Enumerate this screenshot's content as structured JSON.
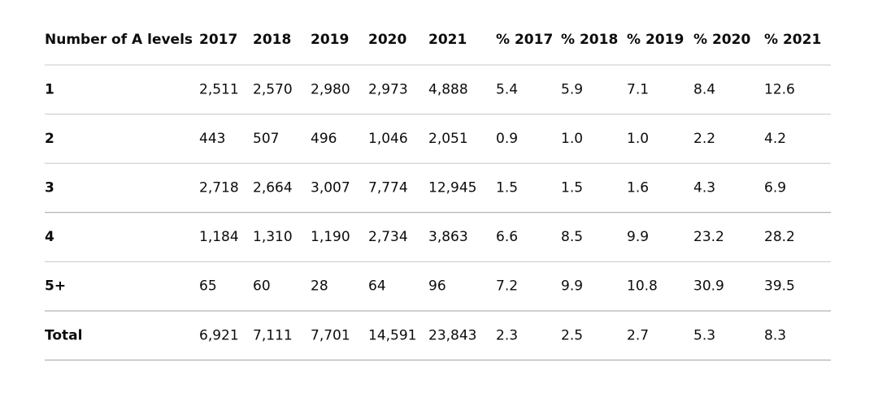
{
  "table": {
    "header": [
      "Number of A levels",
      "2017",
      "2018",
      "2019",
      "2020",
      "2021",
      "% 2017",
      "% 2018",
      "% 2019",
      "% 2020",
      "% 2021"
    ],
    "rows": [
      [
        "1",
        "2,511",
        "2,570",
        "2,980",
        "2,973",
        "4,888",
        "5.4",
        "5.9",
        "7.1",
        "8.4",
        "12.6"
      ],
      [
        "2",
        "443",
        "507",
        "496",
        "1,046",
        "2,051",
        "0.9",
        "1.0",
        "1.0",
        "2.2",
        "4.2"
      ],
      [
        "3",
        "2,718",
        "2,664",
        "3,007",
        "7,774",
        "12,945",
        "1.5",
        "1.5",
        "1.6",
        "4.3",
        "6.9"
      ],
      [
        "4",
        "1,184",
        "1,310",
        "1,190",
        "2,734",
        "3,863",
        "6.6",
        "8.5",
        "9.9",
        "23.2",
        "28.2"
      ],
      [
        "5+",
        "65",
        "60",
        "28",
        "64",
        "96",
        "7.2",
        "9.9",
        "10.8",
        "30.9",
        "39.5"
      ],
      [
        "Total",
        "6,921",
        "7,111",
        "7,701",
        "14,591",
        "23,843",
        "2.3",
        "2.5",
        "2.7",
        "5.3",
        "8.3"
      ]
    ]
  }
}
